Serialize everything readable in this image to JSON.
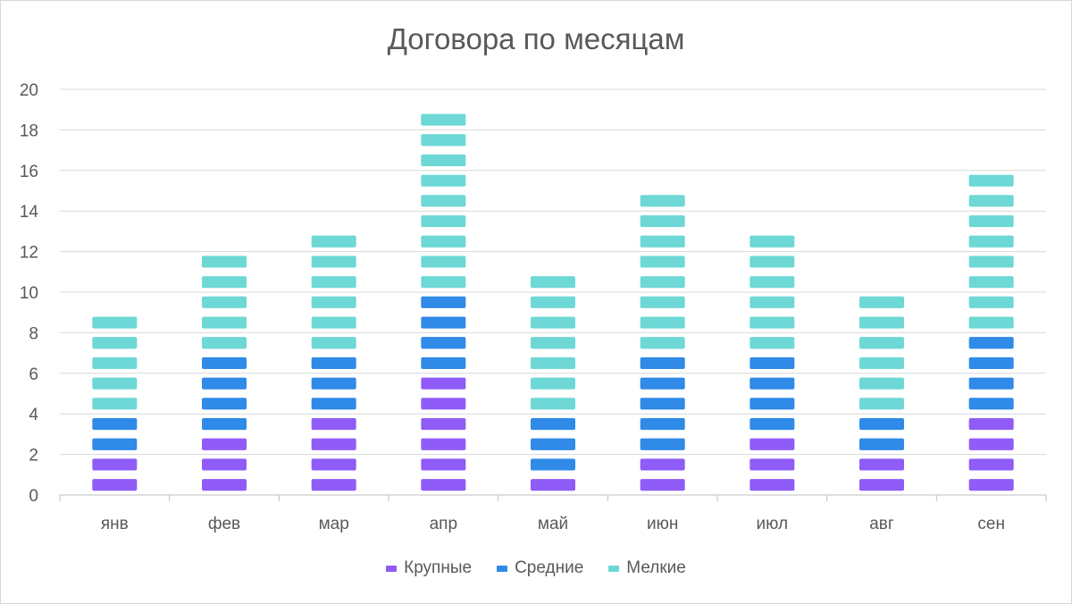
{
  "chart_data": {
    "type": "bar",
    "stacked": true,
    "title": "Договора по месяцам",
    "categories": [
      "янв",
      "фев",
      "мар",
      "апр",
      "май",
      "июн",
      "июл",
      "авг",
      "сен"
    ],
    "series": [
      {
        "name": "Крупные",
        "color": "#8f5cf7",
        "values": [
          2,
          3,
          4,
          6,
          1,
          2,
          3,
          2,
          4
        ]
      },
      {
        "name": "Средние",
        "color": "#2f8ae8",
        "values": [
          2,
          4,
          3,
          4,
          3,
          5,
          4,
          2,
          4
        ]
      },
      {
        "name": "Мелкие",
        "color": "#6dd8d6",
        "values": [
          5,
          5,
          6,
          9,
          7,
          8,
          6,
          6,
          8
        ]
      }
    ],
    "ylim": [
      0,
      20
    ],
    "yticks": [
      0,
      2,
      4,
      6,
      8,
      10,
      12,
      14,
      16,
      18,
      20
    ],
    "grid": true,
    "legend_position": "bottom"
  }
}
